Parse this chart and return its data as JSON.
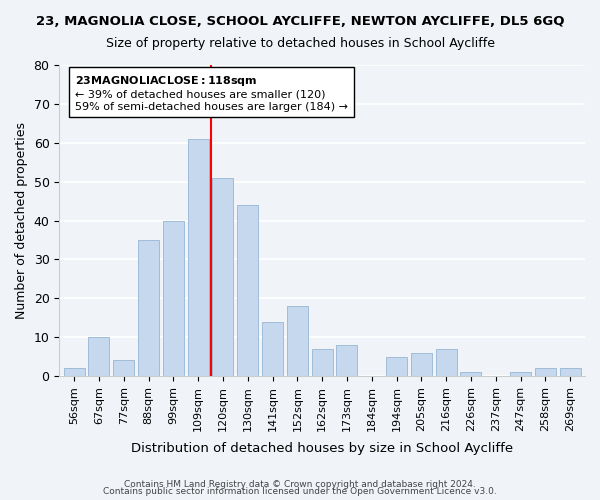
{
  "title": "23, MAGNOLIA CLOSE, SCHOOL AYCLIFFE, NEWTON AYCLIFFE, DL5 6GQ",
  "subtitle": "Size of property relative to detached houses in School Aycliffe",
  "xlabel": "Distribution of detached houses by size in School Aycliffe",
  "ylabel": "Number of detached properties",
  "bar_labels": [
    "56sqm",
    "67sqm",
    "77sqm",
    "88sqm",
    "99sqm",
    "109sqm",
    "120sqm",
    "130sqm",
    "141sqm",
    "152sqm",
    "162sqm",
    "173sqm",
    "184sqm",
    "194sqm",
    "205sqm",
    "216sqm",
    "226sqm",
    "237sqm",
    "247sqm",
    "258sqm",
    "269sqm"
  ],
  "bar_values": [
    2,
    10,
    4,
    35,
    40,
    61,
    51,
    44,
    14,
    18,
    7,
    8,
    0,
    5,
    6,
    7,
    1,
    0,
    1,
    2,
    2
  ],
  "bar_color": "#c5d8ed",
  "bar_edge_color": "#a0bcd8",
  "vline_x_index": 6,
  "vline_color": "red",
  "annotation_title": "23 MAGNOLIA CLOSE: 118sqm",
  "annotation_line1": "← 39% of detached houses are smaller (120)",
  "annotation_line2": "59% of semi-detached houses are larger (184) →",
  "annotation_box_color": "white",
  "annotation_box_edge": "black",
  "ylim": [
    0,
    80
  ],
  "yticks": [
    0,
    10,
    20,
    30,
    40,
    50,
    60,
    70,
    80
  ],
  "footer1": "Contains HM Land Registry data © Crown copyright and database right 2024.",
  "footer2": "Contains public sector information licensed under the Open Government Licence v3.0.",
  "background_color": "#f0f4f9",
  "plot_background_color": "#f0f4f9",
  "grid_color": "white"
}
